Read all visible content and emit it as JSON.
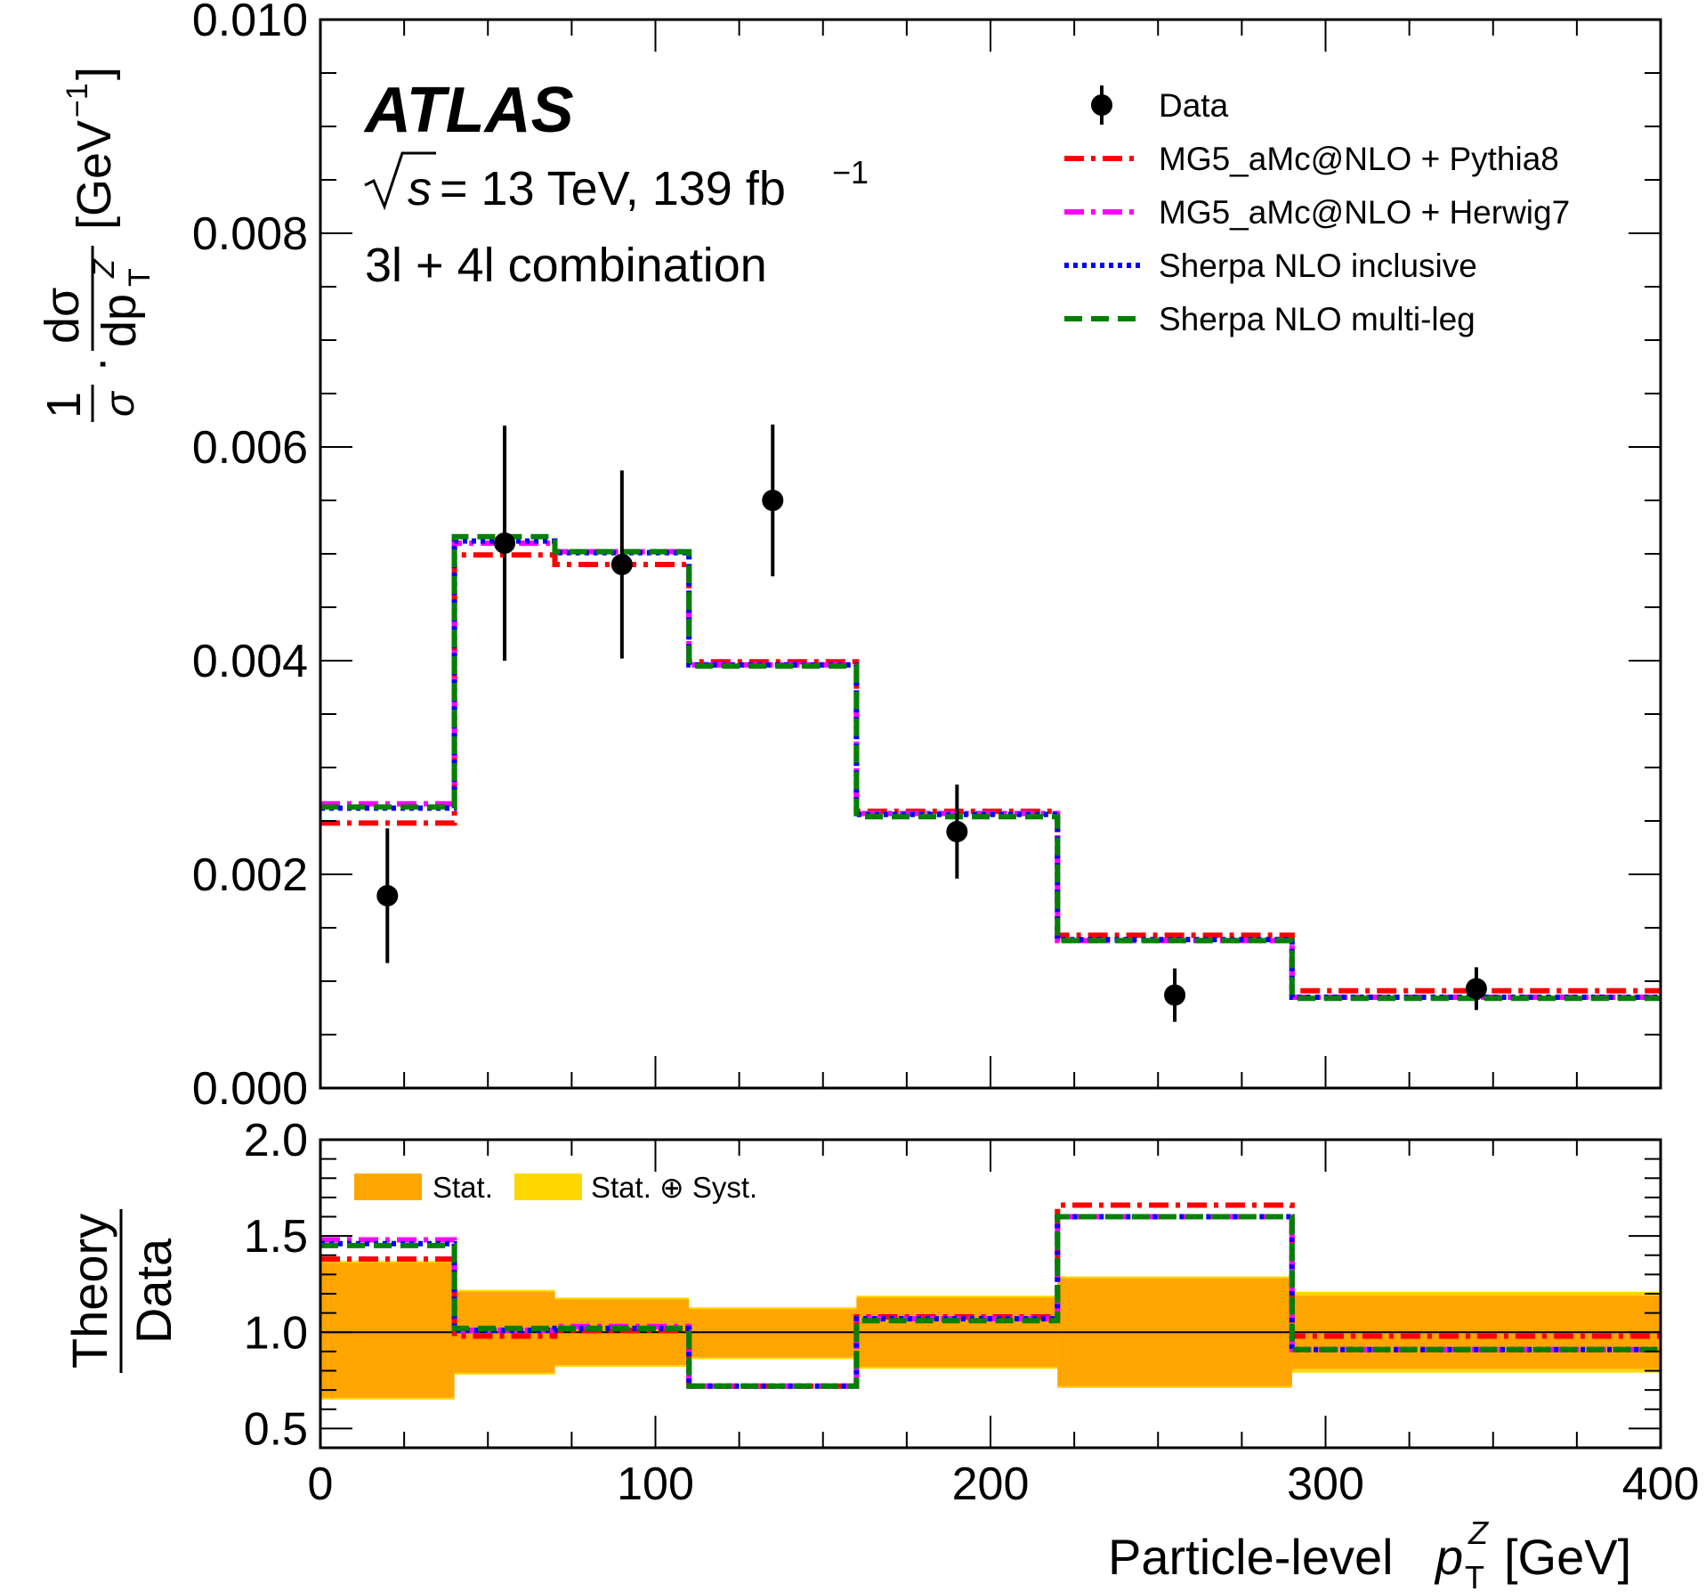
{
  "chart_data": [
    {
      "type": "histogram-with-points",
      "atlas_label": "ATLAS",
      "energy_prefix": "s",
      "energy_text": " = 13 TeV, 139 fb",
      "energy_superscript": "−1",
      "selection": "3l + 4l combination",
      "ylabel": "1/σ · dσ/dp_T^Z [GeV^-1]",
      "ylabel_parts": {
        "one": "1",
        "sigma": "σ",
        "dsigma": "dσ",
        "dp": "dp",
        "T": "T",
        "Z": "Z",
        "unit": "[GeV",
        "unit_sup": "−1",
        "unit_close": "]"
      },
      "ylim": [
        0,
        0.01
      ],
      "yticks": [
        "0.000",
        "0.002",
        "0.004",
        "0.006",
        "0.008",
        "0.010"
      ],
      "xlim": [
        0,
        400
      ],
      "bin_edges": [
        0,
        40,
        70,
        110,
        160,
        220,
        290,
        400
      ],
      "data": {
        "name": "Data",
        "x": [
          20,
          55,
          90,
          135,
          190,
          255,
          345
        ],
        "y": [
          0.0018,
          0.0051,
          0.0049,
          0.0055,
          0.0024,
          0.00087,
          0.00093
        ],
        "err": [
          0.00063,
          0.0011,
          0.00088,
          0.00071,
          0.00044,
          0.00025,
          0.0002
        ]
      },
      "series": [
        {
          "name": "MG5_aMc@NLO + Pythia8",
          "color": "#ff0000",
          "style": "dashdot",
          "values": [
            0.00248,
            0.00499,
            0.0049,
            0.00399,
            0.00259,
            0.00143,
            0.00091
          ]
        },
        {
          "name": "MG5_aMc@NLO + Herwig7",
          "color": "#ff00ff",
          "style": "dashdot",
          "values": [
            0.00266,
            0.0051,
            0.00502,
            0.00396,
            0.00257,
            0.00138,
            0.00085
          ]
        },
        {
          "name": "Sherpa NLO inclusive",
          "color": "#0000ff",
          "style": "dotted",
          "values": [
            0.00262,
            0.00512,
            0.00501,
            0.00396,
            0.00256,
            0.00139,
            0.00085
          ]
        },
        {
          "name": "Sherpa NLO multi-leg",
          "color": "#008000",
          "style": "dashed",
          "values": [
            0.00263,
            0.00516,
            0.00502,
            0.00395,
            0.00254,
            0.00138,
            0.00084
          ]
        }
      ]
    },
    {
      "type": "ratio",
      "ylabel_num": "Theory",
      "ylabel_den": "Data",
      "ylim": [
        0.4,
        2.0
      ],
      "yticks": [
        "0.5",
        "1.0",
        "1.5",
        "2.0"
      ],
      "xlim": [
        0,
        400
      ],
      "xticks": [
        "0",
        "100",
        "200",
        "300",
        "400"
      ],
      "xlabel": "Particle-level p_T^Z [GeV]",
      "xlabel_parts": {
        "prefix": "Particle-level ",
        "p": "p",
        "T": "T",
        "Z": "Z",
        "suffix": " [GeV]"
      },
      "bin_edges": [
        0,
        40,
        70,
        110,
        160,
        220,
        290,
        400
      ],
      "stat_band": [
        [
          0.66,
          1.36
        ],
        [
          0.79,
          1.21
        ],
        [
          0.83,
          1.17
        ],
        [
          0.87,
          1.12
        ],
        [
          0.82,
          1.18
        ],
        [
          0.72,
          1.28
        ],
        [
          0.81,
          1.19
        ]
      ],
      "total_band": [
        [
          0.65,
          1.37
        ],
        [
          0.78,
          1.22
        ],
        [
          0.82,
          1.18
        ],
        [
          0.86,
          1.13
        ],
        [
          0.81,
          1.19
        ],
        [
          0.71,
          1.29
        ],
        [
          0.79,
          1.21
        ]
      ],
      "legend": {
        "stat": "Stat.",
        "total": "Stat. ⊕ Syst."
      },
      "band_colors": {
        "stat": "#ffa500",
        "total": "#ffd700"
      },
      "series": [
        {
          "name": "MG5_aMc@NLO + Pythia8",
          "color": "#ff0000",
          "style": "dashdot",
          "values": [
            1.38,
            0.98,
            1.01,
            0.72,
            1.08,
            1.66,
            0.98
          ]
        },
        {
          "name": "MG5_aMc@NLO + Herwig7",
          "color": "#ff00ff",
          "style": "dashdot",
          "values": [
            1.48,
            1.01,
            1.03,
            0.72,
            1.07,
            1.6,
            0.91
          ]
        },
        {
          "name": "Sherpa NLO inclusive",
          "color": "#0000ff",
          "style": "dotted",
          "values": [
            1.46,
            1.01,
            1.02,
            0.72,
            1.07,
            1.6,
            0.91
          ]
        },
        {
          "name": "Sherpa NLO multi-leg",
          "color": "#008000",
          "style": "dashed",
          "values": [
            1.45,
            1.02,
            1.02,
            0.72,
            1.06,
            1.6,
            0.91
          ]
        }
      ]
    }
  ]
}
